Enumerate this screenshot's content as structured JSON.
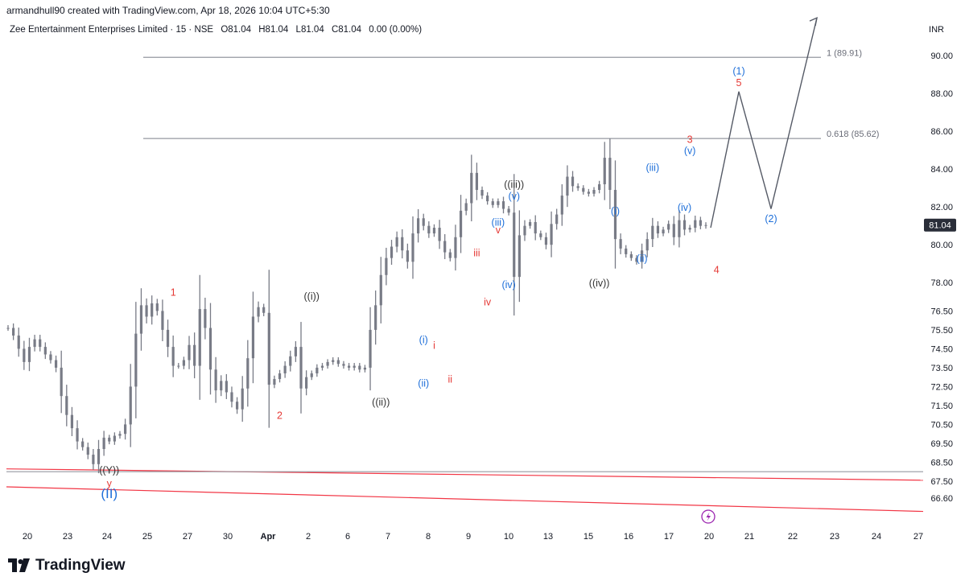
{
  "header": {
    "credit": "armandhull90 created with TradingView.com, Apr 18, 2026 10:04 UTC+5:30",
    "symbol_line": "Zee Entertainment Enterprises Limited · 15 · NSE",
    "ohlc": {
      "o": "O81.04",
      "h": "H81.04",
      "l": "L81.04",
      "c": "C81.04",
      "chg": "0.00 (0.00%)"
    },
    "currency": "INR"
  },
  "logo": {
    "text": "TradingView"
  },
  "colors": {
    "candle": "#787b86",
    "wave_red": "#e53935",
    "wave_blue": "#1e6fd9",
    "wave_black": "#333333",
    "fib": "#9598a1",
    "trend": "#f23645",
    "axis_text": "#131722",
    "price_tag": "#2a2e39"
  },
  "chart_data": {
    "type": "line",
    "title": "",
    "xlabel": "",
    "ylabel": "",
    "ylim": [
      65.2,
      90.9
    ],
    "price_ticks": [
      "90.00",
      "88.00",
      "86.00",
      "84.00",
      "82.00",
      "80.00",
      "78.00",
      "76.50",
      "75.50",
      "74.50",
      "73.50",
      "72.50",
      "71.50",
      "70.50",
      "69.50",
      "68.50",
      "67.50",
      "66.60"
    ],
    "date_ticks": [
      "20",
      "23",
      "24",
      "25",
      "27",
      "30",
      "Apr",
      "2",
      "6",
      "7",
      "8",
      "9",
      "10",
      "13",
      "15",
      "16",
      "17",
      "20",
      "21",
      "22",
      "23",
      "24",
      "27"
    ],
    "last_price": "81.04",
    "fib_levels": [
      {
        "label": "1 (89.91)",
        "price": 89.91
      },
      {
        "label": "0.618 (85.62)",
        "price": 85.62
      }
    ],
    "price_series": {
      "name": "",
      "x_range": [
        "20",
        "Apr 17"
      ],
      "values": [
        75.6,
        75.2,
        74.5,
        73.8,
        74.6,
        75.0,
        74.6,
        74.2,
        73.9,
        73.5,
        72.0,
        71.0,
        70.3,
        69.6,
        69.3,
        68.9,
        68.4,
        69.2,
        69.8,
        69.6,
        69.9,
        70.0,
        70.5,
        72.5,
        75.3,
        76.8,
        76.2,
        76.9,
        76.5,
        75.5,
        74.6,
        73.6,
        73.6,
        73.9,
        74.7,
        73.6,
        76.6,
        75.6,
        73.4,
        72.3,
        72.8,
        72.2,
        71.7,
        71.3,
        72.4,
        74.0,
        76.2,
        76.7,
        76.4,
        72.6,
        72.9,
        73.2,
        73.6,
        74.1,
        74.6,
        72.4,
        73.0,
        73.2,
        73.5,
        73.6,
        73.8,
        73.9,
        73.7,
        73.6,
        73.5,
        73.6,
        73.4,
        73.5,
        75.5,
        76.8,
        78.4,
        79.3,
        79.9,
        80.4,
        79.7,
        79.1,
        80.6,
        81.4,
        81.0,
        80.6,
        80.9,
        80.2,
        79.6,
        79.3,
        80.4,
        81.8,
        82.2,
        83.8,
        82.9,
        82.6,
        82.3,
        82.1,
        82.3,
        81.9,
        81.7,
        78.3,
        80.5,
        81.0,
        81.2,
        80.6,
        80.4,
        80.0,
        81.1,
        81.6,
        82.6,
        83.6,
        83.1,
        83.0,
        82.8,
        82.7,
        82.9,
        83.2,
        84.6,
        82.9,
        80.3,
        79.8,
        79.5,
        79.3,
        79.1,
        79.7,
        80.3,
        81.0,
        80.6,
        80.8,
        81.1,
        80.4,
        81.3,
        80.8,
        80.9,
        81.3,
        81.0,
        81.04
      ]
    },
    "projection": {
      "name": "",
      "points": [
        {
          "x": "Apr 20",
          "y": 80.9
        },
        {
          "x": "Apr 20",
          "y": 88.1
        },
        {
          "x": "Apr 21",
          "y": 81.9
        },
        {
          "x": "Apr 22",
          "y": 92.0
        }
      ]
    },
    "trendlines": [
      {
        "from": 68.15,
        "to": 67.55,
        "color": "trend"
      },
      {
        "from": 67.2,
        "to": 65.9,
        "color": "trend"
      },
      {
        "from": 68.0,
        "to": 68.0,
        "color": "fib"
      }
    ],
    "wave_labels": [
      {
        "text": "((Y))",
        "price": 67.9,
        "color": "wave_black",
        "i": 19
      },
      {
        "text": "y",
        "price": 67.2,
        "color": "wave_red",
        "i": 19
      },
      {
        "text": "(II)",
        "price": 66.6,
        "color": "wave_blue",
        "i": 19,
        "size": 17
      },
      {
        "text": "1",
        "price": 77.3,
        "color": "wave_red",
        "i": 31
      },
      {
        "text": "2",
        "price": 70.8,
        "color": "wave_red",
        "i": 51
      },
      {
        "text": "((i))",
        "price": 77.1,
        "color": "wave_black",
        "i": 57
      },
      {
        "text": "((ii))",
        "price": 71.5,
        "color": "wave_black",
        "i": 70
      },
      {
        "text": "(i)",
        "price": 74.8,
        "color": "wave_blue",
        "i": 78
      },
      {
        "text": "(ii)",
        "price": 72.5,
        "color": "wave_blue",
        "i": 78
      },
      {
        "text": "i",
        "price": 74.5,
        "color": "wave_red",
        "i": 80
      },
      {
        "text": "ii",
        "price": 72.7,
        "color": "wave_red",
        "i": 83
      },
      {
        "text": "iii",
        "price": 79.4,
        "color": "wave_red",
        "i": 88
      },
      {
        "text": "iv",
        "price": 76.8,
        "color": "wave_red",
        "i": 90
      },
      {
        "text": "v",
        "price": 80.6,
        "color": "wave_red",
        "i": 92
      },
      {
        "text": "(iii)",
        "price": 81.0,
        "color": "wave_blue",
        "i": 92
      },
      {
        "text": "(iv)",
        "price": 77.7,
        "color": "wave_blue",
        "i": 94
      },
      {
        "text": "(v)",
        "price": 82.4,
        "color": "wave_blue",
        "i": 95
      },
      {
        "text": "((iii))",
        "price": 83.0,
        "color": "wave_black",
        "i": 95
      },
      {
        "text": "((iv))",
        "price": 77.8,
        "color": "wave_black",
        "i": 111
      },
      {
        "text": "(i)",
        "price": 81.6,
        "color": "wave_blue",
        "i": 114
      },
      {
        "text": "(ii)",
        "price": 79.1,
        "color": "wave_blue",
        "i": 119
      },
      {
        "text": "(iii)",
        "price": 83.9,
        "color": "wave_blue",
        "i": 121
      },
      {
        "text": "(iv)",
        "price": 81.8,
        "color": "wave_blue",
        "i": 127
      },
      {
        "text": "(v)",
        "price": 84.8,
        "color": "wave_blue",
        "i": 128
      },
      {
        "text": "3",
        "price": 85.4,
        "color": "wave_red",
        "i": 128
      },
      {
        "text": "4",
        "price": 78.5,
        "color": "wave_red",
        "i": 133
      },
      {
        "text": "(2)",
        "price": 81.2,
        "color": "wave_blue",
        "proj": 2
      },
      {
        "text": "5",
        "price": 88.4,
        "color": "wave_red",
        "proj": 1
      },
      {
        "text": "(1)",
        "price": 89.0,
        "color": "wave_blue",
        "proj": 1
      }
    ]
  }
}
